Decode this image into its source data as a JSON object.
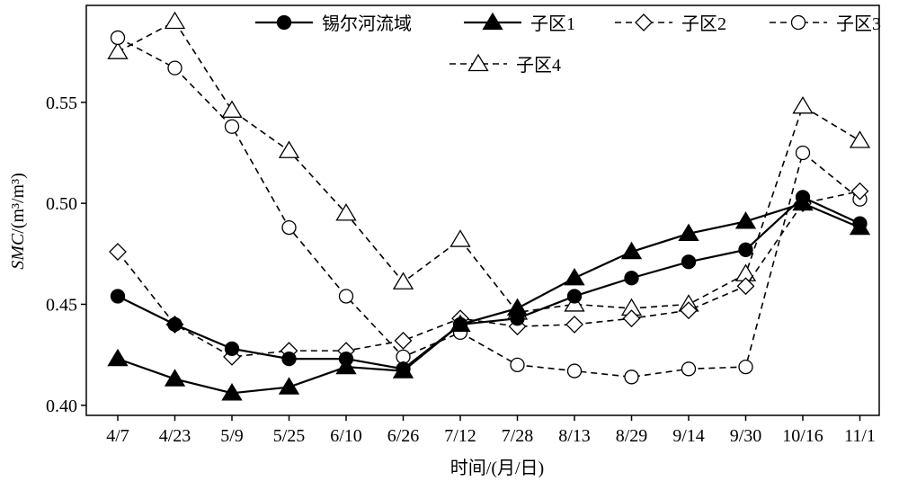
{
  "chart_data": {
    "type": "line",
    "categories": [
      "4/7",
      "4/23",
      "5/9",
      "5/25",
      "6/10",
      "6/26",
      "7/12",
      "7/28",
      "8/13",
      "8/29",
      "9/14",
      "9/30",
      "10/16",
      "11/1"
    ],
    "xlabel": "时间/(月/日)",
    "ylabel": {
      "italic": "SMC",
      "rest": "/(m³/m³)"
    },
    "ylim": [
      0.395,
      0.598
    ],
    "yticks": [
      0.4,
      0.45,
      0.5,
      0.55
    ],
    "ytick_labels": [
      "0.40",
      "0.45",
      "0.50",
      "0.55"
    ],
    "grid": false,
    "legend_position": "top",
    "series": [
      {
        "name": "锡尔河流域",
        "marker": "circle-filled",
        "line": "solid",
        "values": [
          0.454,
          0.44,
          0.428,
          0.423,
          0.423,
          0.418,
          0.44,
          0.443,
          0.454,
          0.463,
          0.471,
          0.477,
          0.503,
          0.49
        ]
      },
      {
        "name": "子区1",
        "marker": "triangle-filled",
        "line": "solid",
        "values": [
          0.423,
          0.413,
          0.406,
          0.409,
          0.419,
          0.417,
          0.44,
          0.448,
          0.463,
          0.476,
          0.485,
          0.491,
          0.5,
          0.488
        ]
      },
      {
        "name": "子区2",
        "marker": "diamond-open",
        "line": "dashed",
        "values": [
          0.476,
          0.44,
          0.424,
          0.427,
          0.427,
          0.432,
          0.443,
          0.439,
          0.44,
          0.443,
          0.447,
          0.459,
          0.5,
          0.506
        ]
      },
      {
        "name": "子区3",
        "marker": "circle-open",
        "line": "dashed",
        "values": [
          0.582,
          0.567,
          0.538,
          0.488,
          0.454,
          0.424,
          0.436,
          0.42,
          0.417,
          0.414,
          0.418,
          0.419,
          0.525,
          0.502
        ]
      },
      {
        "name": "子区4",
        "marker": "triangle-open",
        "line": "dashed",
        "values": [
          0.575,
          0.59,
          0.546,
          0.526,
          0.495,
          0.461,
          0.482,
          0.446,
          0.45,
          0.448,
          0.45,
          0.465,
          0.548,
          0.531
        ]
      }
    ]
  }
}
